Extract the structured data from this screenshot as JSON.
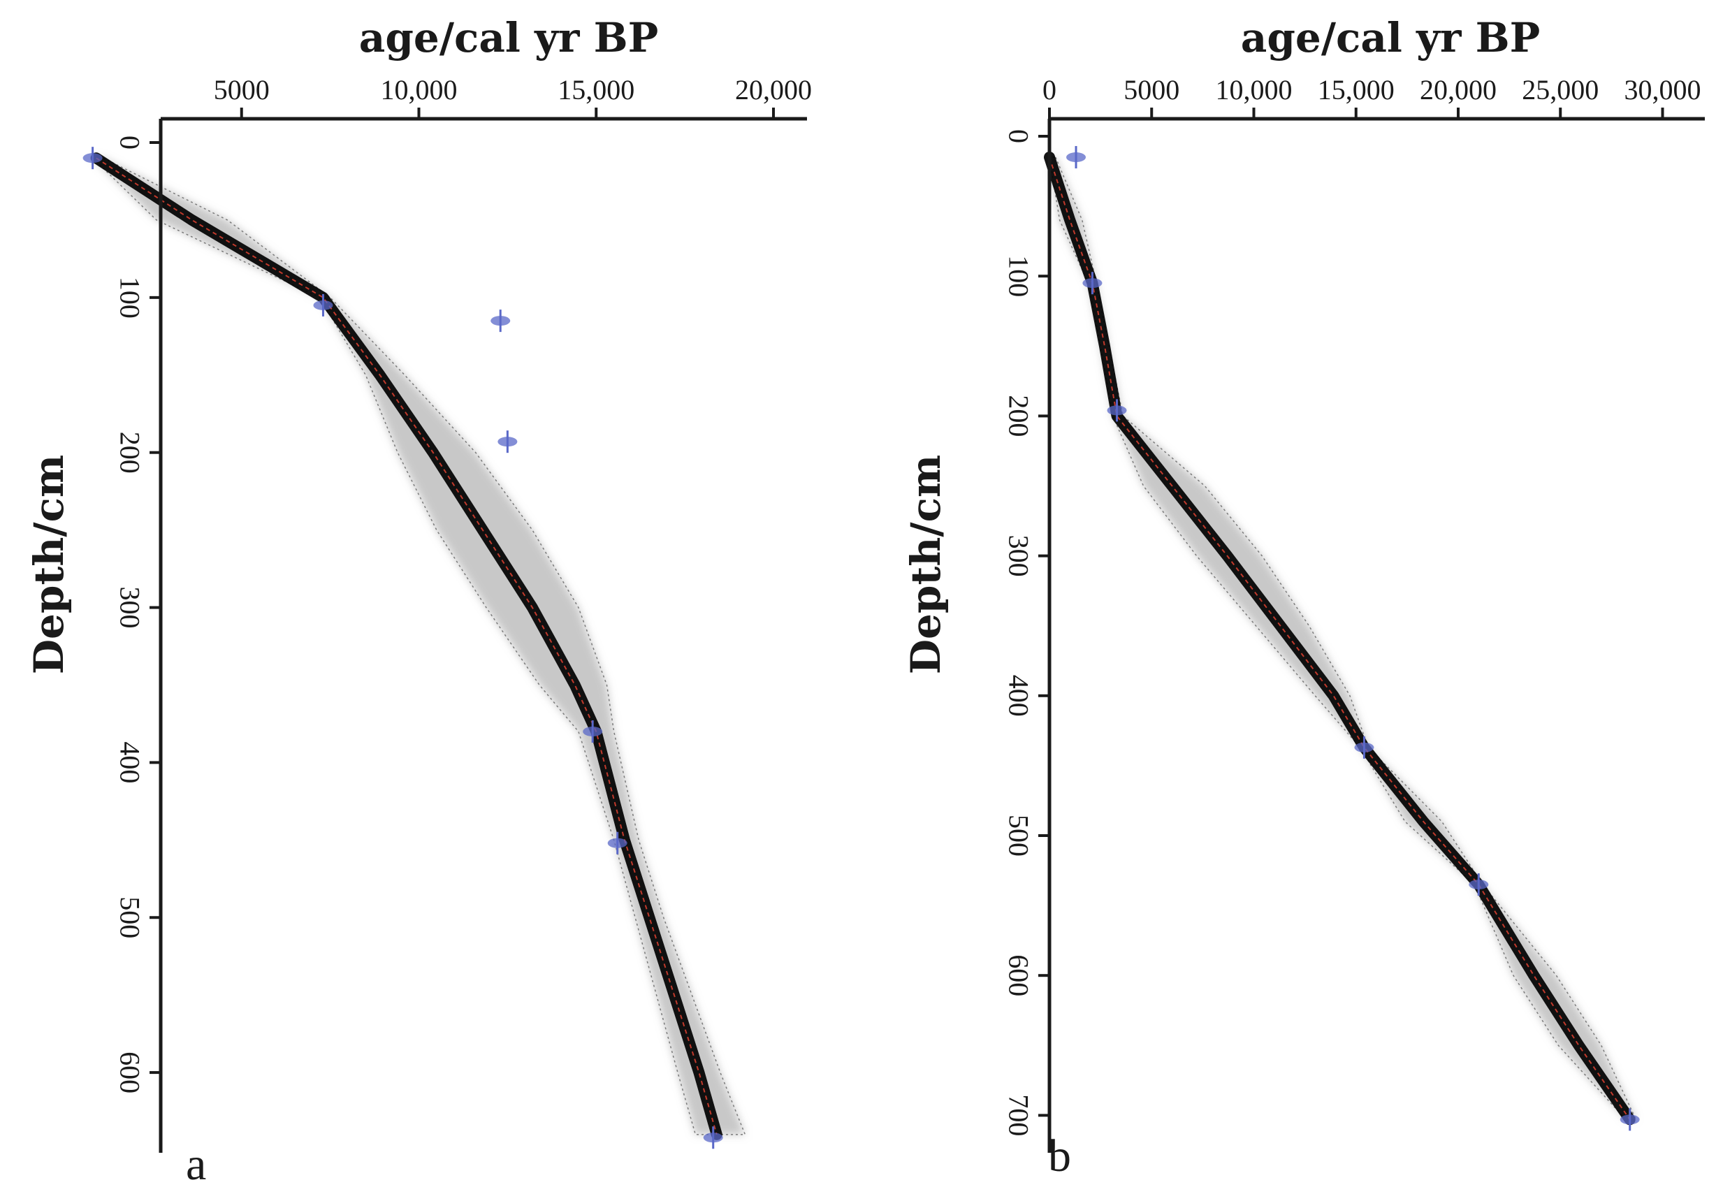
{
  "colors": {
    "axis": "#1a1a1a",
    "median": "#000000",
    "envelope": "#9a9a9a",
    "envelope_edge": "#7a7a7a",
    "mean_line": "#c0392b",
    "calibrated_dates": "#5a68c8"
  },
  "chart_data": [
    {
      "type": "line",
      "panel_label": "a",
      "xlabel": "age/cal yr BP",
      "ylabel": "Depth/cm",
      "x_axis_position": "top",
      "y_reversed": true,
      "xlim": [
        0,
        20000
      ],
      "ylim": [
        0,
        650
      ],
      "xticks": [
        5000,
        10000,
        15000,
        20000
      ],
      "xtick_labels": [
        "5000",
        "10,000",
        "15,000",
        "20,000"
      ],
      "yticks": [
        0,
        100,
        200,
        300,
        400,
        500,
        600
      ],
      "ytick_labels": [
        "0",
        "100",
        "200",
        "300",
        "400",
        "500",
        "600"
      ],
      "grid": false,
      "series": [
        {
          "role": "age-depth model",
          "depth": [
            10,
            50,
            100,
            150,
            200,
            250,
            300,
            350,
            380,
            450,
            500,
            550,
            600,
            640
          ],
          "age": [
            900,
            3600,
            7300,
            8900,
            10400,
            11800,
            13200,
            14400,
            15000,
            15800,
            16500,
            17200,
            17900,
            18400
          ],
          "lower": [
            800,
            2600,
            7200,
            8500,
            9400,
            10500,
            11900,
            13400,
            14500,
            15500,
            16100,
            16700,
            17300,
            17800
          ],
          "upper": [
            1100,
            4600,
            7500,
            9600,
            11600,
            13200,
            14500,
            15300,
            15500,
            16200,
            16900,
            17700,
            18500,
            19200
          ]
        },
        {
          "role": "calibrated dates",
          "points": [
            {
              "depth": 10,
              "age": 800
            },
            {
              "depth": 105,
              "age": 7300
            },
            {
              "depth": 115,
              "age": 12300
            },
            {
              "depth": 193,
              "age": 12500
            },
            {
              "depth": 380,
              "age": 14900
            },
            {
              "depth": 452,
              "age": 15600
            },
            {
              "depth": 642,
              "age": 18300
            }
          ]
        }
      ]
    },
    {
      "type": "line",
      "panel_label": "b",
      "xlabel": "age/cal yr BP",
      "ylabel": "Depth/cm",
      "x_axis_position": "top",
      "y_reversed": true,
      "xlim": [
        0,
        30000
      ],
      "ylim": [
        0,
        730
      ],
      "xticks": [
        0,
        5000,
        10000,
        15000,
        20000,
        25000,
        30000
      ],
      "xtick_labels": [
        "0",
        "5000",
        "10,000",
        "15,000",
        "20,000",
        "25,000",
        "30,000"
      ],
      "yticks": [
        0,
        100,
        200,
        300,
        400,
        500,
        600,
        700
      ],
      "ytick_labels": [
        "0",
        "100",
        "200",
        "300",
        "400",
        "500",
        "600",
        "700"
      ],
      "grid": false,
      "series": [
        {
          "role": "age-depth model",
          "depth": [
            15,
            60,
            105,
            150,
            200,
            250,
            300,
            350,
            400,
            437,
            490,
            535,
            600,
            650,
            703
          ],
          "age": [
            0,
            1000,
            2100,
            2700,
            3300,
            6000,
            8700,
            11300,
            13900,
            15400,
            18300,
            21000,
            23700,
            25900,
            28400
          ],
          "lower": [
            0,
            500,
            1900,
            2500,
            3100,
            4600,
            7200,
            10100,
            13000,
            15200,
            17400,
            20800,
            22700,
            24900,
            28200
          ],
          "upper": [
            300,
            1600,
            2300,
            2900,
            3600,
            7600,
            10400,
            12700,
            14700,
            15600,
            19200,
            21200,
            24800,
            27000,
            28700
          ]
        },
        {
          "role": "calibrated dates",
          "points": [
            {
              "depth": 15,
              "age": 1300
            },
            {
              "depth": 105,
              "age": 2100
            },
            {
              "depth": 196,
              "age": 3300
            },
            {
              "depth": 437,
              "age": 15400
            },
            {
              "depth": 535,
              "age": 21000
            },
            {
              "depth": 703,
              "age": 28400
            }
          ]
        }
      ]
    }
  ]
}
